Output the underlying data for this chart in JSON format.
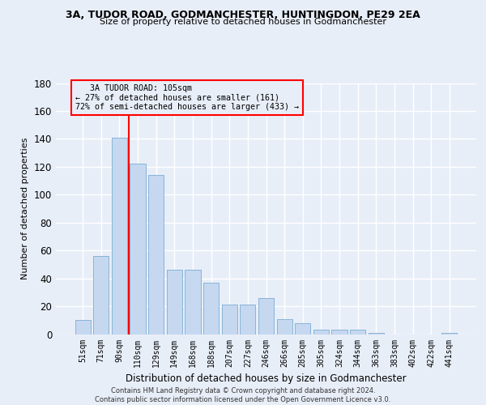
{
  "title1": "3A, TUDOR ROAD, GODMANCHESTER, HUNTINGDON, PE29 2EA",
  "title2": "Size of property relative to detached houses in Godmanchester",
  "xlabel": "Distribution of detached houses by size in Godmanchester",
  "ylabel": "Number of detached properties",
  "footer1": "Contains HM Land Registry data © Crown copyright and database right 2024.",
  "footer2": "Contains public sector information licensed under the Open Government Licence v3.0.",
  "annotation_line1": "   3A TUDOR ROAD: 105sqm",
  "annotation_line2": "← 27% of detached houses are smaller (161)",
  "annotation_line3": "72% of semi-detached houses are larger (433) →",
  "bar_labels": [
    "51sqm",
    "71sqm",
    "90sqm",
    "110sqm",
    "129sqm",
    "149sqm",
    "168sqm",
    "188sqm",
    "207sqm",
    "227sqm",
    "246sqm",
    "266sqm",
    "285sqm",
    "305sqm",
    "324sqm",
    "344sqm",
    "363sqm",
    "383sqm",
    "402sqm",
    "422sqm",
    "441sqm"
  ],
  "bar_values": [
    10,
    56,
    141,
    122,
    114,
    46,
    46,
    37,
    21,
    21,
    26,
    11,
    8,
    3,
    3,
    3,
    1,
    0,
    0,
    0,
    1
  ],
  "bar_color": "#c5d8f0",
  "bar_edge_color": "#7aadd4",
  "redline_color": "red",
  "annotation_box_color": "red",
  "ylim": [
    0,
    180
  ],
  "yticks": [
    0,
    20,
    40,
    60,
    80,
    100,
    120,
    140,
    160,
    180
  ],
  "bg_color": "#e8eef8",
  "grid_color": "white"
}
